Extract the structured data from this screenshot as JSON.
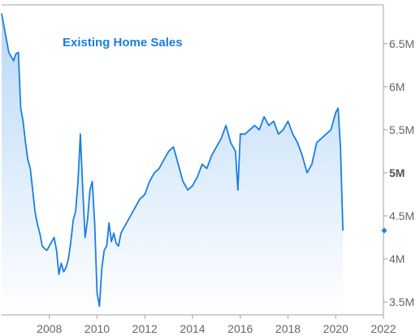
{
  "chart_data": {
    "type": "area",
    "title": "Existing Home Sales",
    "xlabel": "",
    "ylabel": "",
    "xlim": [
      2006.0,
      2022.0
    ],
    "ylim": [
      3.35,
      6.95
    ],
    "x_ticks": [
      {
        "value": 2008,
        "label": "2008"
      },
      {
        "value": 2010,
        "label": "2010"
      },
      {
        "value": 2012,
        "label": "2012"
      },
      {
        "value": 2014,
        "label": "2014"
      },
      {
        "value": 2016,
        "label": "2016"
      },
      {
        "value": 2018,
        "label": "2018"
      },
      {
        "value": 2020,
        "label": "2020"
      },
      {
        "value": 2022,
        "label": "2022"
      }
    ],
    "y_ticks": [
      {
        "value": 3.5,
        "label": "3.5M",
        "bold": false
      },
      {
        "value": 4.0,
        "label": "4M",
        "bold": false
      },
      {
        "value": 4.5,
        "label": "4.5M",
        "bold": false
      },
      {
        "value": 5.0,
        "label": "5M",
        "bold": true
      },
      {
        "value": 5.5,
        "label": "5.5M",
        "bold": false
      },
      {
        "value": 6.0,
        "label": "6M",
        "bold": false
      },
      {
        "value": 6.5,
        "label": "6.5M",
        "bold": false
      }
    ],
    "grid": false,
    "colors": {
      "line": "#1a7fe0",
      "fill_top": "#b9d8f7",
      "fill_bottom": "#ffffff",
      "axis": "#9aa3ad",
      "marker": "#1a7fe0"
    },
    "last_value_marker": 4.33,
    "series": [
      {
        "x": [
          2006.0,
          2006.1,
          2006.2,
          2006.3,
          2006.4,
          2006.5,
          2006.6,
          2006.7,
          2006.8,
          2006.9,
          2007.0,
          2007.1,
          2007.2,
          2007.3,
          2007.4,
          2007.5,
          2007.6,
          2007.7,
          2007.8,
          2007.9,
          2008.0,
          2008.1,
          2008.2,
          2008.3,
          2008.4,
          2008.5,
          2008.6,
          2008.7,
          2008.8,
          2008.9,
          2009.0,
          2009.1,
          2009.2,
          2009.3,
          2009.4,
          2009.5,
          2009.6,
          2009.7,
          2009.8,
          2009.9,
          2010.0,
          2010.1,
          2010.2,
          2010.3,
          2010.4,
          2010.5,
          2010.6,
          2010.7,
          2010.8,
          2010.9,
          2011.0,
          2011.1,
          2011.2,
          2011.3,
          2011.4,
          2011.5,
          2011.6,
          2011.7,
          2011.8,
          2011.9,
          2012.0,
          2012.2,
          2012.4,
          2012.6,
          2012.8,
          2013.0,
          2013.2,
          2013.4,
          2013.6,
          2013.8,
          2014.0,
          2014.2,
          2014.4,
          2014.6,
          2014.8,
          2015.0,
          2015.2,
          2015.4,
          2015.6,
          2015.8,
          2015.9,
          2016.0,
          2016.2,
          2016.4,
          2016.6,
          2016.8,
          2017.0,
          2017.2,
          2017.4,
          2017.6,
          2017.8,
          2018.0,
          2018.2,
          2018.4,
          2018.6,
          2018.8,
          2019.0,
          2019.2,
          2019.4,
          2019.6,
          2019.8,
          2020.0,
          2020.1,
          2020.2,
          2020.3
        ],
        "values": [
          6.85,
          6.7,
          6.55,
          6.4,
          6.35,
          6.3,
          6.38,
          6.4,
          5.75,
          5.6,
          5.35,
          5.15,
          5.05,
          4.8,
          4.55,
          4.4,
          4.3,
          4.15,
          4.12,
          4.1,
          4.15,
          4.2,
          4.25,
          4.1,
          3.82,
          3.95,
          3.85,
          3.9,
          4.0,
          4.2,
          4.45,
          4.55,
          4.9,
          5.45,
          4.8,
          4.25,
          4.45,
          4.8,
          4.9,
          4.4,
          3.6,
          3.45,
          3.9,
          4.1,
          4.15,
          4.42,
          4.2,
          4.3,
          4.18,
          4.15,
          4.3,
          4.35,
          4.4,
          4.45,
          4.5,
          4.55,
          4.6,
          4.65,
          4.7,
          4.72,
          4.75,
          4.9,
          5.0,
          5.05,
          5.15,
          5.25,
          5.3,
          5.1,
          4.9,
          4.8,
          4.85,
          4.95,
          5.1,
          5.05,
          5.2,
          5.3,
          5.4,
          5.55,
          5.35,
          5.25,
          4.8,
          5.45,
          5.45,
          5.5,
          5.55,
          5.5,
          5.65,
          5.55,
          5.6,
          5.45,
          5.5,
          5.6,
          5.45,
          5.35,
          5.2,
          5.0,
          5.1,
          5.35,
          5.4,
          5.45,
          5.5,
          5.7,
          5.75,
          5.3,
          4.33
        ]
      }
    ]
  }
}
